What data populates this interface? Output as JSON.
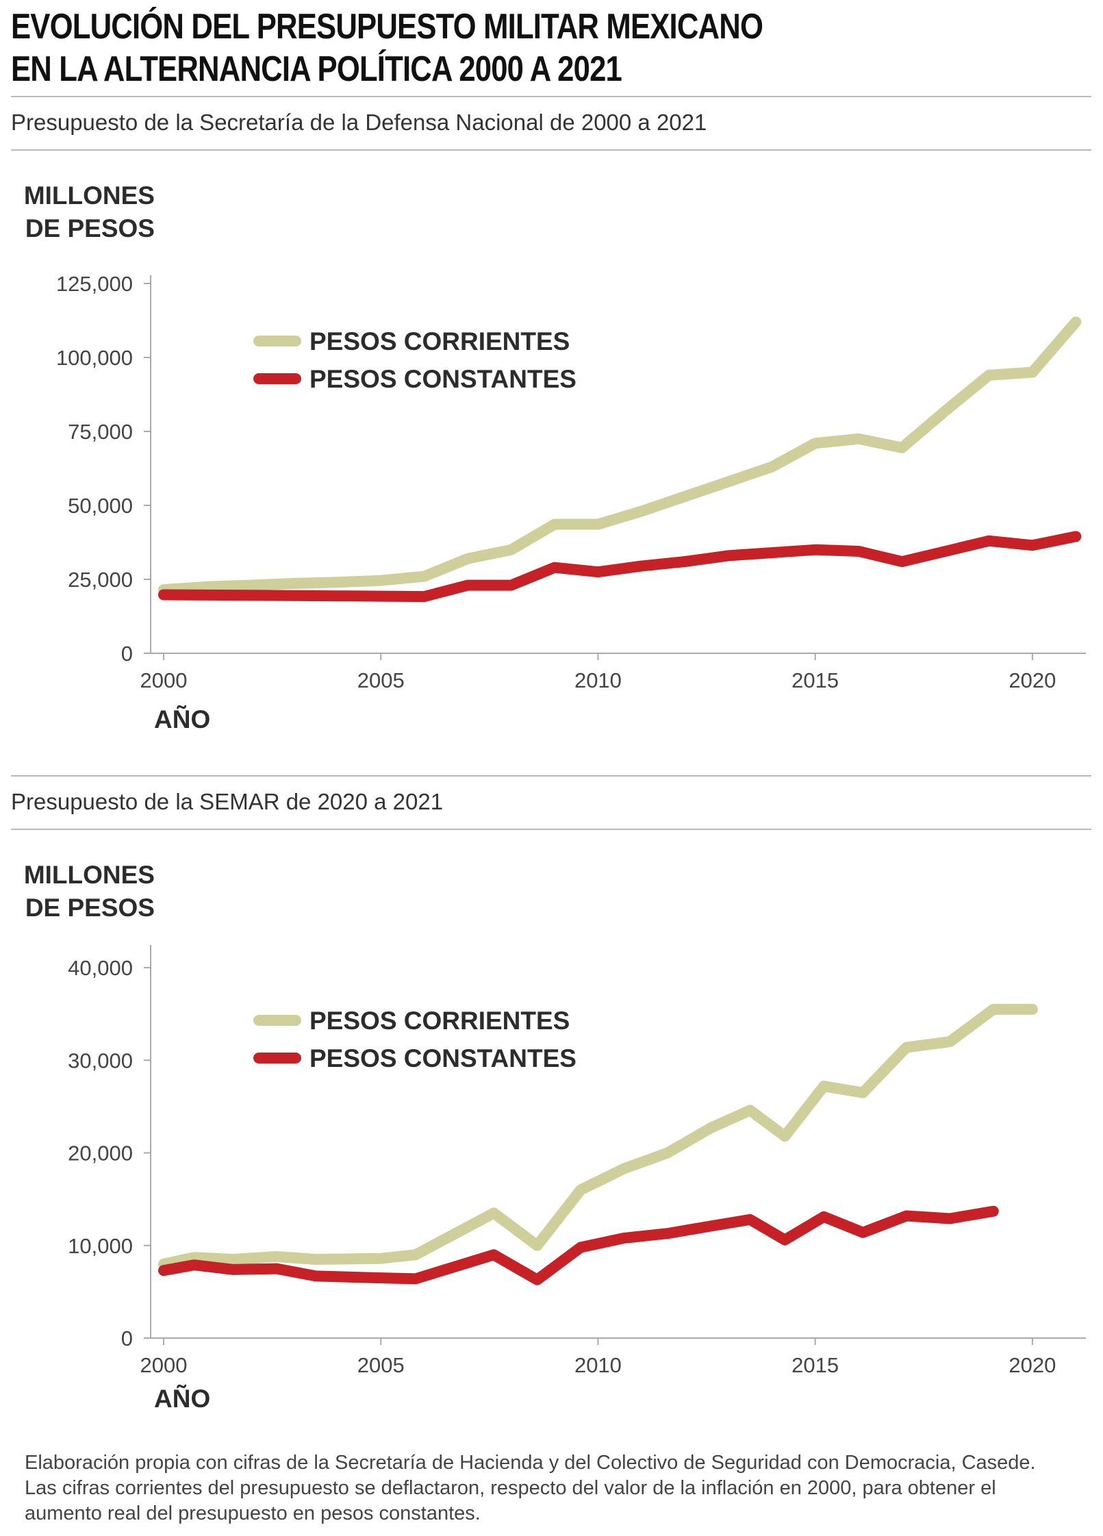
{
  "header": {
    "title_line1": "EVOLUCIÓN DEL PRESUPUESTO MILITAR MEXICANO",
    "title_line2": "EN LA ALTERNANCIA POLÍTICA 2000 A 2021"
  },
  "colors": {
    "corrientes": "#cfcf9b",
    "constantes": "#c62127",
    "axis": "#aaaaaa",
    "text": "#333333"
  },
  "chart_data": [
    {
      "type": "line",
      "title": "Presupuesto de la Secretaría de la Defensa Nacional de 2000 a 2021",
      "ylabel_line1": "MILLONES",
      "ylabel_line2": "DE PESOS",
      "xlabel": "AÑO",
      "xlim": [
        1999.7,
        2021.2
      ],
      "ylim": [
        0,
        125000
      ],
      "xticks": [
        2000,
        2005,
        2010,
        2015,
        2020
      ],
      "xtick_labels": [
        "2000",
        "2005",
        "2010",
        "2015",
        "2020"
      ],
      "yticks": [
        0,
        25000,
        50000,
        75000,
        100000,
        125000
      ],
      "ytick_labels": [
        "0",
        "25,000",
        "50,000",
        "75,000",
        "100,000",
        "125,000"
      ],
      "legend": [
        "PESOS CORRIENTES",
        "PESOS CONSTANTES"
      ],
      "series": [
        {
          "name": "PESOS CORRIENTES",
          "color": "#cfcf9b",
          "x": [
            2000,
            2001,
            2002,
            2003,
            2004,
            2005,
            2006,
            2007,
            2008,
            2009,
            2010,
            2011,
            2012,
            2013,
            2014,
            2015,
            2016,
            2017,
            2018,
            2019,
            2020,
            2021
          ],
          "values": [
            21500,
            22500,
            23000,
            23600,
            24000,
            24600,
            26000,
            32000,
            35000,
            43600,
            43600,
            48000,
            53000,
            58000,
            63000,
            71000,
            72500,
            69500,
            82000,
            94000,
            95000,
            112000
          ]
        },
        {
          "name": "PESOS CONSTANTES",
          "color": "#c62127",
          "x": [
            2000,
            2001,
            2002,
            2003,
            2004,
            2005,
            2006,
            2007,
            2008,
            2009,
            2010,
            2011,
            2012,
            2013,
            2014,
            2015,
            2016,
            2017,
            2018,
            2019,
            2020,
            2021
          ],
          "values": [
            19800,
            19700,
            19600,
            19500,
            19400,
            19300,
            19200,
            23000,
            23000,
            29000,
            27500,
            29500,
            31000,
            33000,
            34000,
            35000,
            34500,
            31000,
            34500,
            38000,
            36500,
            39500
          ]
        }
      ]
    },
    {
      "type": "line",
      "title": "Presupuesto de la SEMAR de 2020 a 2021",
      "ylabel_line1": "MILLONES",
      "ylabel_line2": "DE PESOS",
      "xlabel": "AÑO",
      "xlim": [
        1999.7,
        2021.2
      ],
      "ylim": [
        0,
        42000
      ],
      "xticks": [
        2000,
        2005,
        2010,
        2015,
        2020
      ],
      "xtick_labels": [
        "2000",
        "2005",
        "2010",
        "2015",
        "2020"
      ],
      "yticks": [
        0,
        10000,
        20000,
        30000,
        40000
      ],
      "ytick_labels": [
        "0",
        "10,000",
        "20,000",
        "30,000",
        "40,000"
      ],
      "legend": [
        "PESOS CORRIENTES",
        "PESOS CONSTANTES"
      ],
      "series": [
        {
          "name": "PESOS CORRIENTES",
          "color": "#cfcf9b",
          "x": [
            2000,
            2000.7,
            2001.6,
            2002.6,
            2003.5,
            2005,
            2005.8,
            2007.6,
            2008.6,
            2009.6,
            2010.6,
            2011.6,
            2012.6,
            2013.5,
            2014.3,
            2015.2,
            2016.1,
            2017.1,
            2018.1,
            2019.1,
            2020
          ],
          "values": [
            8000,
            8700,
            8500,
            8800,
            8500,
            8600,
            9000,
            13500,
            10000,
            16000,
            18300,
            20000,
            22700,
            24600,
            21800,
            27200,
            26500,
            31400,
            32000,
            35500,
            35500
          ]
        },
        {
          "name": "PESOS CONSTANTES",
          "color": "#c62127",
          "x": [
            2000,
            2000.7,
            2001.6,
            2002.6,
            2003.5,
            2005,
            2005.8,
            2007.6,
            2008.6,
            2009.6,
            2010.6,
            2011.6,
            2012.6,
            2013.5,
            2014.3,
            2015.2,
            2016.1,
            2017.1,
            2018.1,
            2019.1
          ],
          "values": [
            7300,
            7900,
            7400,
            7500,
            6700,
            6500,
            6400,
            9000,
            6300,
            9800,
            10800,
            11300,
            12100,
            12800,
            10600,
            13100,
            11400,
            13200,
            12900,
            13700
          ]
        }
      ]
    }
  ],
  "footnote": {
    "line1": "Elaboración propia con cifras de la Secretaría de Hacienda y del Colectivo de Seguridad con Democracia, Casede.",
    "line2": "Las cifras corrientes del presupuesto se deflactaron, respecto del valor de la inflación en 2000, para obtener el",
    "line3": "aumento real del presupuesto en pesos constantes."
  }
}
